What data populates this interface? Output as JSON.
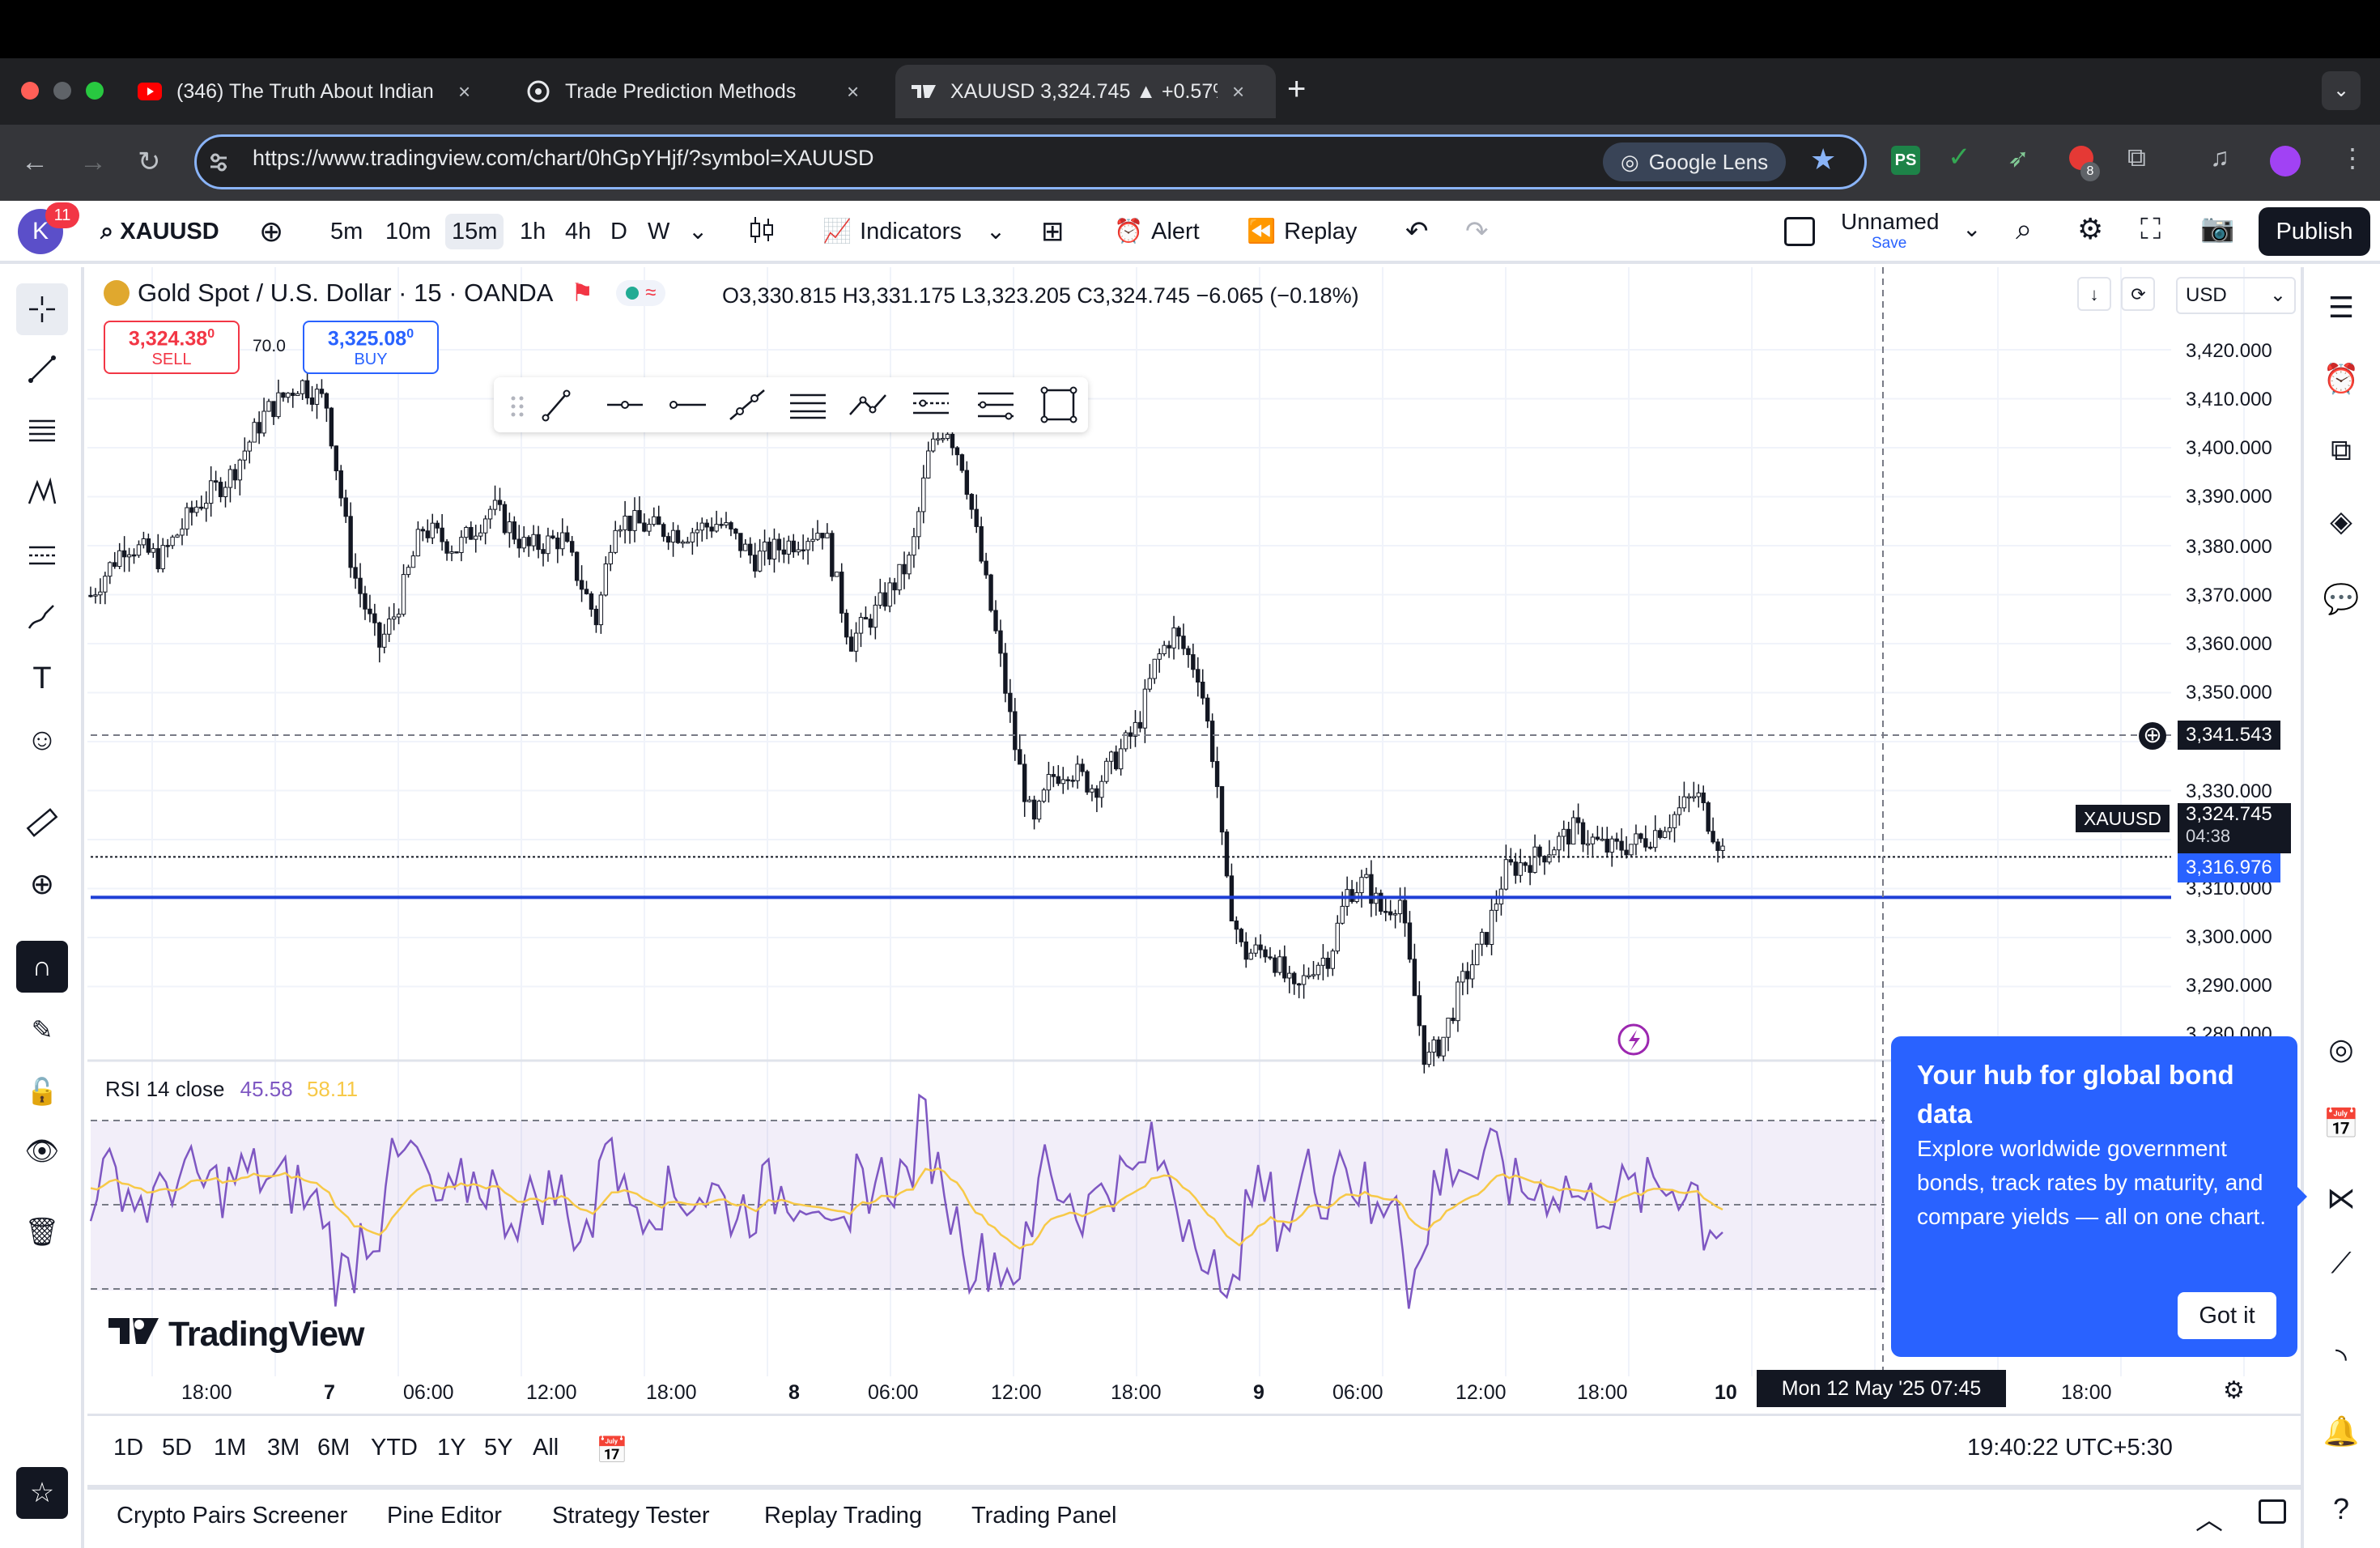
{
  "browser": {
    "tabs": [
      {
        "title": "(346) The Truth About Indian",
        "icon": "youtube-icon"
      },
      {
        "title": "Trade Prediction Methods",
        "icon": "chatgpt-icon"
      },
      {
        "title": "XAUUSD 3,324.745 ▲ +0.57%",
        "icon": "tradingview-icon"
      }
    ],
    "url": "https://www.tradingview.com/chart/0hGpYHjf/?symbol=XAUUSD",
    "lens_label": "Google Lens",
    "ext_badge": "8",
    "tab_close": "×",
    "new_tab": "+"
  },
  "header": {
    "avatar_letter": "K",
    "notifications": "11",
    "symbol": "XAUUSD",
    "intervals": [
      "5m",
      "10m",
      "15m",
      "1h",
      "4h",
      "D",
      "W"
    ],
    "active_interval": "15m",
    "indicators_label": "Indicators",
    "alert_label": "Alert",
    "replay_label": "Replay",
    "layout_name": "Unnamed",
    "layout_save": "Save",
    "publish_label": "Publish"
  },
  "legend": {
    "instrument": "Gold Spot / U.S. Dollar · 15 · OANDA",
    "ohlc": "O3,330.815 H3,331.175 L3,323.205 C3,324.745 −6.065 (−0.18%)",
    "sell_price": "3,324.38",
    "sell_sup": "0",
    "sell_label": "SELL",
    "spread": "70.0",
    "buy_price": "3,325.08",
    "buy_sup": "0",
    "buy_label": "BUY",
    "currency": "USD"
  },
  "price_axis": {
    "ticks": [
      "3,420.000",
      "3,410.000",
      "3,400.000",
      "3,390.000",
      "3,380.000",
      "3,370.000",
      "3,360.000",
      "3,350.000",
      "3,330.000",
      "3,310.000",
      "3,300.000",
      "3,290.000",
      "3,280.000"
    ],
    "crosshair_price": "3,341.543",
    "symbol_tag": "XAUUSD",
    "last_price": "3,324.745",
    "countdown": "04:38",
    "hline_price": "3,316.976"
  },
  "rsi": {
    "label": "RSI 14 close",
    "value": "45.58",
    "ma_value": "58.11"
  },
  "time_axis": {
    "labels": [
      "18:00",
      "7",
      "06:00",
      "12:00",
      "18:00",
      "8",
      "06:00",
      "12:00",
      "18:00",
      "9",
      "06:00",
      "12:00",
      "18:00",
      "10",
      "18:00"
    ],
    "crosshair_time": "Mon 12 May '25   07:45"
  },
  "watermark": "TradingView",
  "promo": {
    "title": "Your hub for global bond data",
    "body": "Explore worldwide government bonds, track rates by maturity, and compare yields — all on one chart.",
    "button": "Got it"
  },
  "ranges": [
    "1D",
    "5D",
    "1M",
    "3M",
    "6M",
    "YTD",
    "1Y",
    "5Y",
    "All"
  ],
  "clock": "19:40:22 UTC+5:30",
  "bottom_tabs": [
    "Crypto Pairs Screener",
    "Pine Editor",
    "Strategy Tester",
    "Replay Trading",
    "Trading Panel"
  ],
  "colors": {
    "accent": "#2962ff",
    "up": "#131722",
    "rsi_line": "#7e57c2",
    "rsi_ma": "#f7c948",
    "sell": "#f23645",
    "hline": "#1e3fd6"
  },
  "chart_data": {
    "type": "candlestick",
    "title": "Gold Spot / U.S. Dollar · 15 · OANDA",
    "ylim": [
      3280,
      3425
    ],
    "hline": 3316.976,
    "last": 3324.745,
    "path_points": [
      [
        0,
        3375
      ],
      [
        0.02,
        3385
      ],
      [
        0.04,
        3382
      ],
      [
        0.06,
        3392
      ],
      [
        0.08,
        3398
      ],
      [
        0.1,
        3410
      ],
      [
        0.12,
        3416
      ],
      [
        0.135,
        3412
      ],
      [
        0.15,
        3380
      ],
      [
        0.165,
        3365
      ],
      [
        0.175,
        3372
      ],
      [
        0.19,
        3388
      ],
      [
        0.21,
        3384
      ],
      [
        0.23,
        3392
      ],
      [
        0.25,
        3384
      ],
      [
        0.27,
        3386
      ],
      [
        0.29,
        3370
      ],
      [
        0.3,
        3390
      ],
      [
        0.32,
        3388
      ],
      [
        0.34,
        3387
      ],
      [
        0.36,
        3389
      ],
      [
        0.38,
        3382
      ],
      [
        0.4,
        3385
      ],
      [
        0.42,
        3388
      ],
      [
        0.435,
        3366
      ],
      [
        0.45,
        3372
      ],
      [
        0.47,
        3382
      ],
      [
        0.48,
        3402
      ],
      [
        0.49,
        3408
      ],
      [
        0.5,
        3400
      ],
      [
        0.51,
        3382
      ],
      [
        0.52,
        3365
      ],
      [
        0.53,
        3345
      ],
      [
        0.54,
        3330
      ],
      [
        0.55,
        3340
      ],
      [
        0.56,
        3342
      ],
      [
        0.575,
        3338
      ],
      [
        0.59,
        3345
      ],
      [
        0.6,
        3350
      ],
      [
        0.61,
        3362
      ],
      [
        0.62,
        3368
      ],
      [
        0.635,
        3360
      ],
      [
        0.645,
        3340
      ],
      [
        0.65,
        3320
      ],
      [
        0.66,
        3306
      ],
      [
        0.675,
        3307
      ],
      [
        0.69,
        3298
      ],
      [
        0.7,
        3304
      ],
      [
        0.71,
        3306
      ],
      [
        0.72,
        3318
      ],
      [
        0.73,
        3320
      ],
      [
        0.74,
        3314
      ],
      [
        0.75,
        3317
      ],
      [
        0.755,
        3305
      ],
      [
        0.765,
        3285
      ],
      [
        0.775,
        3290
      ],
      [
        0.785,
        3300
      ],
      [
        0.8,
        3310
      ],
      [
        0.81,
        3322
      ],
      [
        0.83,
        3325
      ],
      [
        0.85,
        3330
      ],
      [
        0.87,
        3326
      ],
      [
        0.89,
        3328
      ],
      [
        0.905,
        3332
      ],
      [
        0.92,
        3337
      ],
      [
        0.925,
        3333
      ],
      [
        0.935,
        3326
      ]
    ]
  }
}
